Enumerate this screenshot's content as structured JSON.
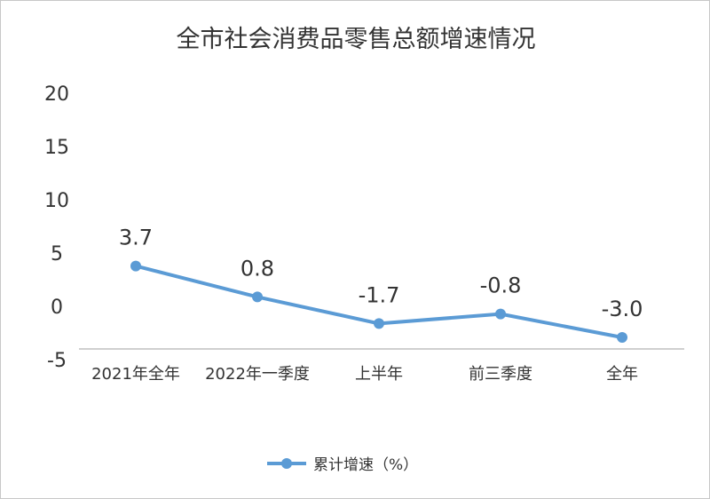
{
  "chart_data": {
    "type": "line",
    "title": "全市社会消费品零售总额增速情况",
    "categories": [
      "2021年全年",
      "2022年一季度",
      "上半年",
      "前三季度",
      "全年"
    ],
    "series": [
      {
        "name": "累计增速（%）",
        "values": [
          3.7,
          0.8,
          -1.7,
          -0.8,
          -3.0
        ],
        "color": "#5b9bd5"
      }
    ],
    "data_labels": [
      "3.7",
      "0.8",
      "-1.7",
      "-0.8",
      "-3.0"
    ],
    "yticks": [
      20,
      15,
      10,
      5,
      0,
      -5
    ],
    "ylim": [
      -5,
      20
    ],
    "grid": false,
    "legend": "bottom"
  }
}
